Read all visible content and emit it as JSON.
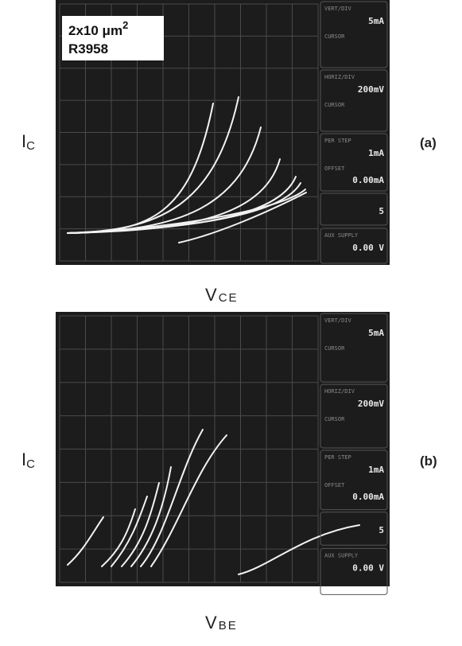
{
  "panel_a": {
    "label": "(a)",
    "y_label": "I",
    "y_label_sub": "C",
    "x_label": "V",
    "x_label_sub": "CE",
    "inset": {
      "line1": "2x10 μm",
      "line1_sup": "2",
      "line2": "R3958"
    },
    "readouts": [
      {
        "title": "VERT/DIV",
        "value": "5mA",
        "extra": "CURSOR"
      },
      {
        "title": "HORIZ/DIV",
        "value": "200mV",
        "extra": "CURSOR"
      },
      {
        "title": "PER STEP",
        "value": "1mA",
        "extra": "OFFSET",
        "extra_value": "0.00mA"
      },
      {
        "value": "5"
      },
      {
        "title": "AUX SUPPLY",
        "value": "0.00 V"
      }
    ]
  },
  "panel_b": {
    "label": "(b)",
    "y_label": "I",
    "y_label_sub": "C",
    "x_label": "V",
    "x_label_sub": "BE",
    "readouts": [
      {
        "title": "VERT/DIV",
        "value": "5mA",
        "extra": "CURSOR"
      },
      {
        "title": "HORIZ/DIV",
        "value": "200mV",
        "extra": "CURSOR"
      },
      {
        "title": "PER STEP",
        "value": "1mA",
        "extra": "OFFSET",
        "extra_value": "0.00mA"
      },
      {
        "value": "5"
      },
      {
        "title": "AUX SUPPLY",
        "value": "0.00 V"
      }
    ]
  }
}
